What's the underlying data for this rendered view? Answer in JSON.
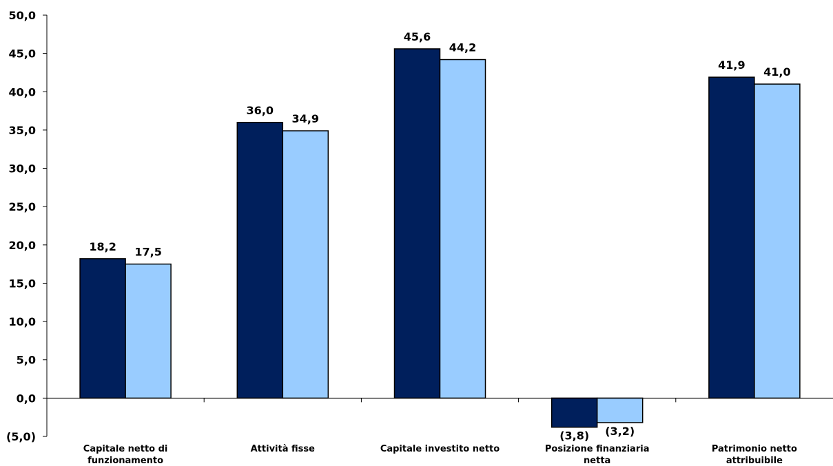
{
  "chart_data": {
    "type": "bar",
    "categories": [
      [
        "Capitale netto di",
        "funzionamento"
      ],
      [
        "Attività fisse"
      ],
      [
        "Capitale investito netto"
      ],
      [
        "Posizione finanziaria",
        "netta"
      ],
      [
        "Patrimonio netto",
        "attribuibile"
      ]
    ],
    "series": [
      {
        "color": "#001F5C",
        "values": [
          18.2,
          36.0,
          45.6,
          -3.8,
          41.9
        ],
        "labels": [
          "18,2",
          "36,0",
          "45,6",
          "(3,8)",
          "41,9"
        ]
      },
      {
        "color": "#99CCFF",
        "values": [
          17.5,
          34.9,
          44.2,
          -3.2,
          41.0
        ],
        "labels": [
          "17,5",
          "34,9",
          "44,2",
          "(3,2)",
          "41,0"
        ]
      }
    ],
    "ylim": [
      -5,
      50
    ],
    "yticks": [
      {
        "value": 50,
        "label": "50,0"
      },
      {
        "value": 45,
        "label": "45,0"
      },
      {
        "value": 40,
        "label": "40,0"
      },
      {
        "value": 35,
        "label": "35,0"
      },
      {
        "value": 30,
        "label": "30,0"
      },
      {
        "value": 25,
        "label": "25,0"
      },
      {
        "value": 20,
        "label": "20,0"
      },
      {
        "value": 15,
        "label": "15,0"
      },
      {
        "value": 10,
        "label": "10,0"
      },
      {
        "value": 5,
        "label": "5,0"
      },
      {
        "value": 0,
        "label": "0,0"
      },
      {
        "value": -5,
        "label": "(5,0)"
      }
    ],
    "grid": false,
    "title": "",
    "xlabel": "",
    "ylabel": ""
  }
}
